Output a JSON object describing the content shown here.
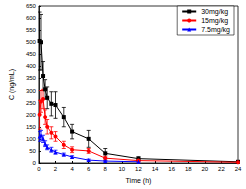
{
  "chart_data": {
    "type": "line",
    "x_label": "Time (h)",
    "y_label": "C (ng/mL)",
    "x": [
      0.083,
      0.25,
      0.5,
      0.75,
      1,
      1.5,
      2,
      3,
      4,
      6,
      8,
      12,
      24
    ],
    "series": [
      {
        "name": "30mg/kg",
        "color": "#000000",
        "marker": "square",
        "values": [
          505,
          500,
          360,
          305,
          270,
          245,
          240,
          190,
          130,
          100,
          40,
          18,
          5
        ],
        "errors": [
          120,
          115,
          60,
          40,
          45,
          50,
          55,
          40,
          30,
          35,
          20,
          8,
          3
        ]
      },
      {
        "name": "15mg/kg",
        "color": "#ff0000",
        "marker": "circle",
        "values": [
          200,
          255,
          265,
          190,
          150,
          125,
          110,
          75,
          55,
          50,
          20,
          10,
          3
        ],
        "errors": [
          60,
          45,
          40,
          30,
          30,
          25,
          20,
          15,
          12,
          10,
          8,
          4,
          2
        ]
      },
      {
        "name": "7.5mg/kg",
        "color": "#0000ff",
        "marker": "triangle",
        "values": [
          110,
          115,
          100,
          80,
          65,
          55,
          45,
          35,
          25,
          12,
          8,
          5,
          null
        ],
        "errors": [
          20,
          20,
          15,
          12,
          10,
          10,
          8,
          6,
          5,
          4,
          3,
          2,
          null
        ]
      }
    ],
    "xlim": [
      0,
      24
    ],
    "xticks": [
      0,
      2,
      4,
      6,
      8,
      10,
      12,
      14,
      16,
      18,
      20,
      22,
      24
    ],
    "ylim": [
      0,
      650
    ],
    "yticks": [
      0,
      50,
      100,
      150,
      200,
      250,
      300,
      350,
      400,
      450,
      500,
      550,
      600,
      650
    ],
    "legend": "top-right",
    "grid": false
  }
}
